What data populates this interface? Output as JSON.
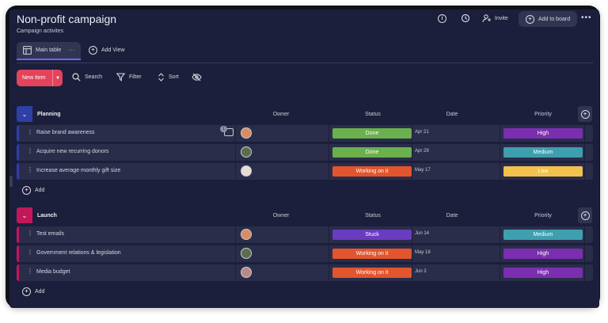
{
  "board": {
    "title": "Non-profit campaign",
    "subtitle": "Campaign activites"
  },
  "header": {
    "invite_label": "Invite",
    "add_to_board_label": "Add to board"
  },
  "tabs": {
    "main_table_label": "Main table",
    "add_view_label": "Add View"
  },
  "toolbar": {
    "new_item_label": "New Item",
    "search_label": "Search",
    "filter_label": "Filter",
    "sort_label": "Sort"
  },
  "columns": {
    "owner": "Owner",
    "status": "Status",
    "date": "Date",
    "priority": "Priority"
  },
  "colors": {
    "planning": "#2e3fa6",
    "launch": "#c2185b",
    "done": "#6ab04c",
    "working": "#e2552d",
    "stuck": "#6a3cc0",
    "high": "#7b2fb0",
    "medium": "#3e9fae",
    "low": "#f2c14e"
  },
  "groups": [
    {
      "title": "Planning",
      "add_label": "Add",
      "rows": [
        {
          "name": "Raise brand awareness",
          "status": "Done",
          "date": "Apr 21",
          "priority": "High",
          "comments": "1"
        },
        {
          "name": "Acquire new recurring donors",
          "status": "Done",
          "date": "Apr 29",
          "priority": "Medium"
        },
        {
          "name": "Increase average monthly gift size",
          "status": "Working on it",
          "date": "May 17",
          "priority": "Low"
        }
      ]
    },
    {
      "title": "Launch",
      "add_label": "Add",
      "rows": [
        {
          "name": "Test emails",
          "status": "Stuck",
          "date": "Jun 14",
          "priority": "Medium"
        },
        {
          "name": "Government relations & legislation",
          "status": "Working on it",
          "date": "May 18",
          "priority": "High"
        },
        {
          "name": "Media budget",
          "status": "Working on it",
          "date": "Jun 2",
          "priority": "High"
        }
      ]
    }
  ]
}
